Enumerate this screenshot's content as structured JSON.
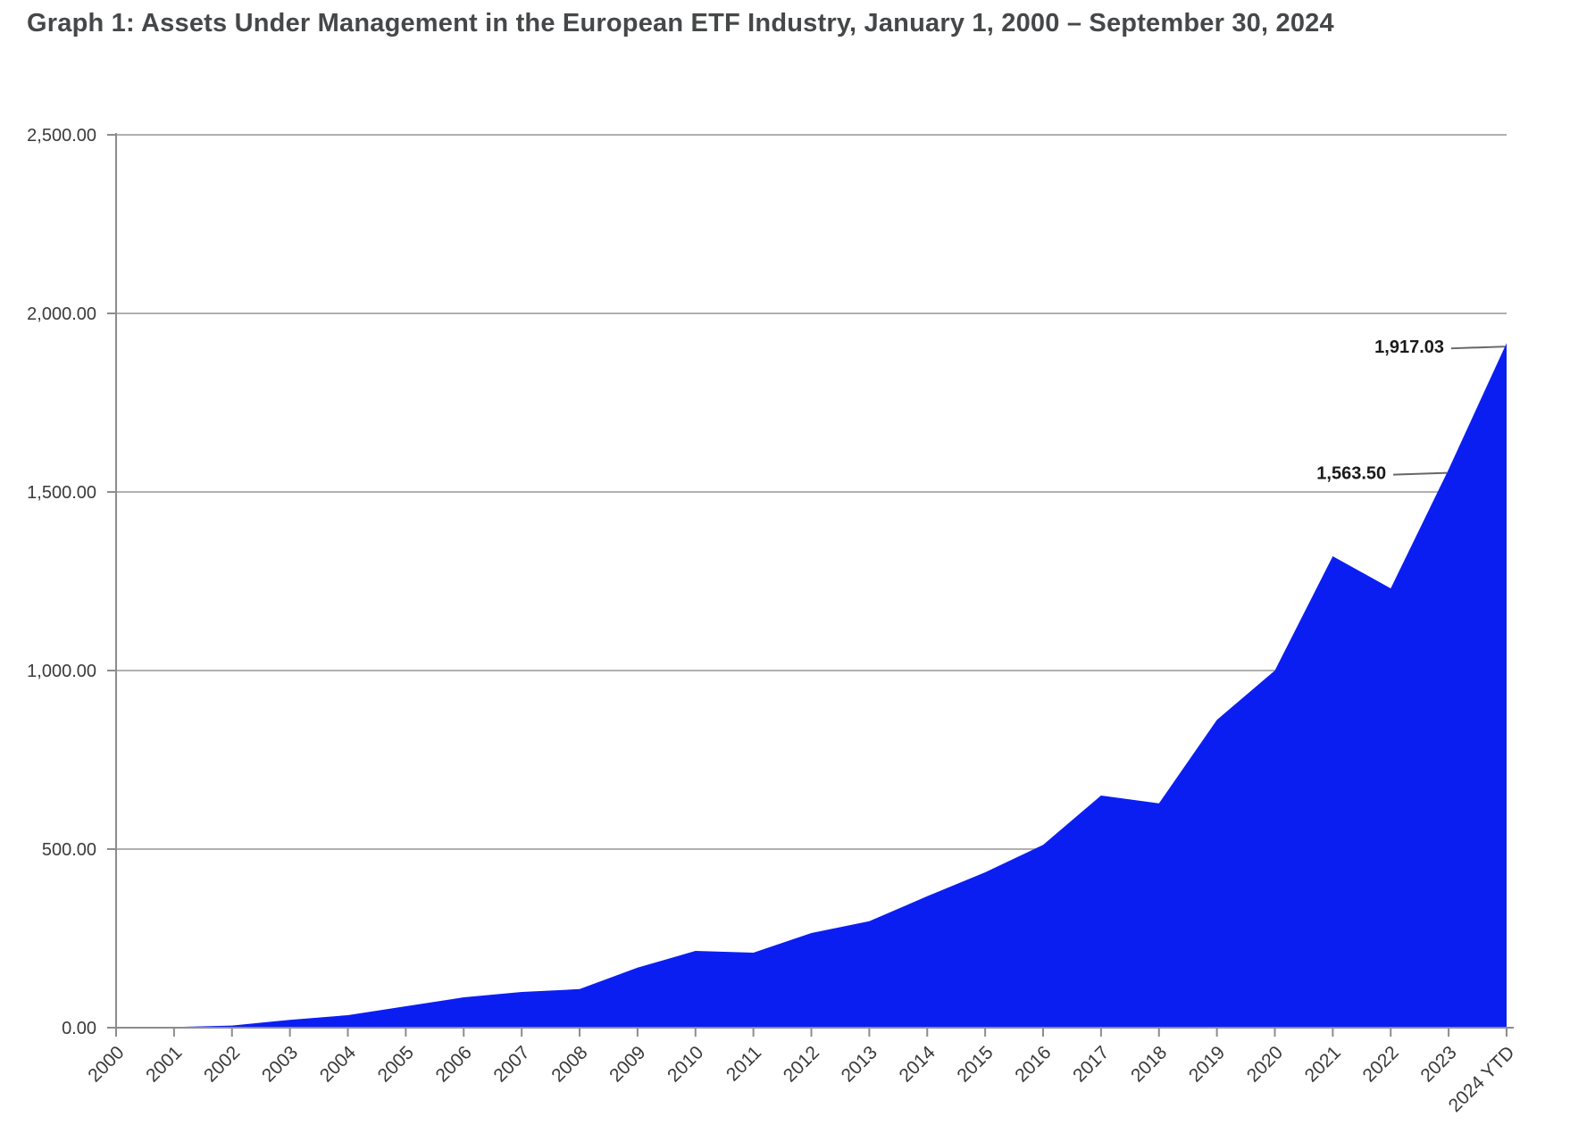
{
  "title": {
    "text": "Graph 1: Assets Under Management in the European ETF Industry, January 1, 2000 – September 30, 2024"
  },
  "colors": {
    "background": "#ffffff",
    "area_fill": "#0b1ef2",
    "gridline": "#b0b0b0",
    "axis": "#8c8c8c",
    "title_text": "#454748",
    "tick_text": "#3a3a3a",
    "annotation_text": "#1a1a1a",
    "leader_line": "#666666"
  },
  "chart_data": {
    "type": "area",
    "title": "Graph 1: Assets Under Management in the European ETF Industry, January 1, 2000 – September 30, 2024",
    "categories": [
      "2000",
      "2001",
      "2002",
      "2003",
      "2004",
      "2005",
      "2006",
      "2007",
      "2008",
      "2009",
      "2010",
      "2011",
      "2012",
      "2013",
      "2014",
      "2015",
      "2016",
      "2017",
      "2018",
      "2019",
      "2020",
      "2021",
      "2022",
      "2023",
      "2024 YTD"
    ],
    "values": [
      0.5,
      2,
      6,
      22,
      35,
      60,
      85,
      100,
      108,
      168,
      215,
      210,
      265,
      298,
      368,
      435,
      512,
      650,
      628,
      862,
      1000,
      1320,
      1230,
      1563.5,
      1917.03
    ],
    "xlabel": "",
    "ylabel": "",
    "ylim": [
      0,
      2500
    ],
    "ytick_interval": 500,
    "ytick_labels": [
      "0.00",
      "500.00",
      "1,000.00",
      "1,500.00",
      "2,000.00",
      "2,500.00"
    ],
    "grid": true,
    "legend": false,
    "x_tick_rotation": -45,
    "annotations": [
      {
        "label": "1,563.50",
        "category": "2023",
        "value": 1563.5
      },
      {
        "label": "1,917.03",
        "category": "2024 YTD",
        "value": 1917.03
      }
    ]
  }
}
